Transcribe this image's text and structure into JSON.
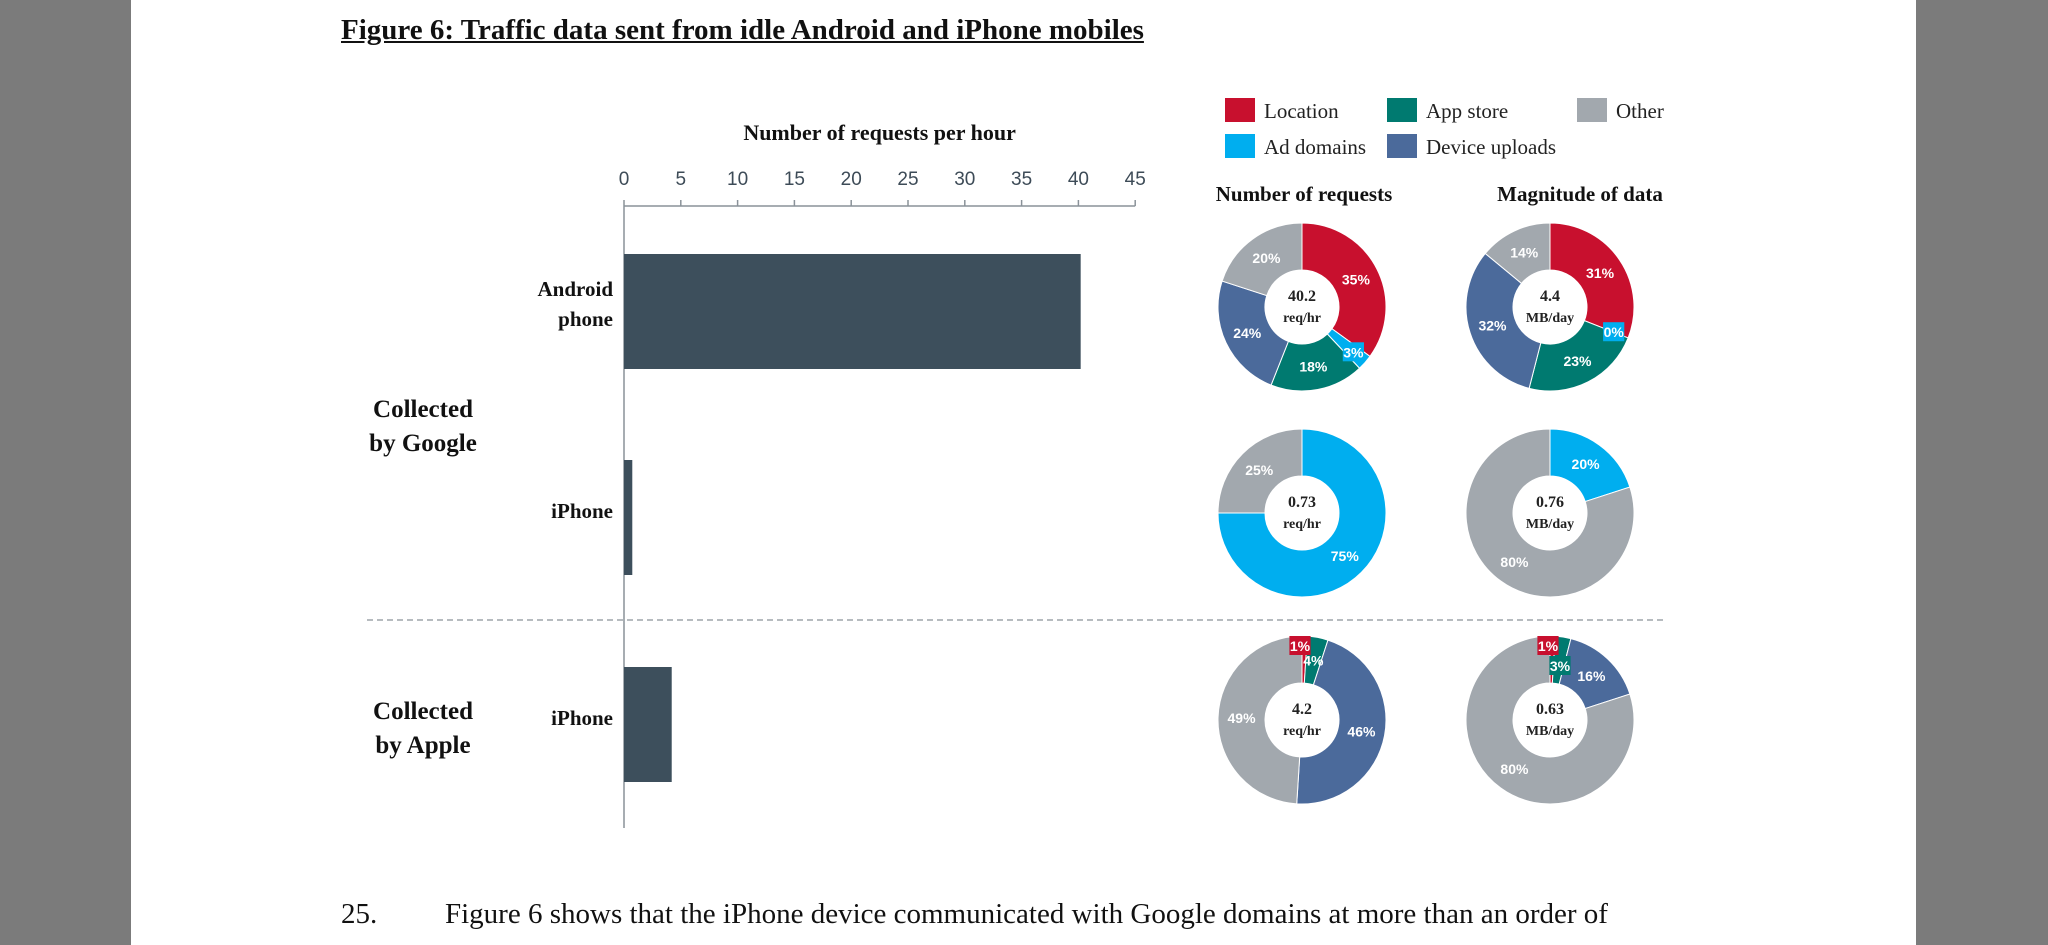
{
  "figure_title": "Figure 6: Traffic data sent from idle Android and iPhone mobiles",
  "paragraph": {
    "number": "25.",
    "text": "Figure 6 shows that the iPhone device communicated with Google domains at more than an order of"
  },
  "colors": {
    "location": "#c8102e",
    "ad_domains": "#00aeef",
    "app_store": "#007a70",
    "device_uploads": "#4b6a9b",
    "other": "#a2a8ae",
    "bar": "#3d4f5c"
  },
  "chart_data": [
    {
      "type": "bar",
      "orientation": "horizontal",
      "title": "Number of requests per hour",
      "xlim": [
        0,
        45
      ],
      "xticks": [
        0,
        5,
        10,
        15,
        20,
        25,
        30,
        35,
        40,
        45
      ],
      "groups": [
        {
          "label": "Collected by Google",
          "label_lines": [
            "Collected",
            "by Google"
          ]
        },
        {
          "label": "Collected by Apple",
          "label_lines": [
            "Collected",
            "by Apple"
          ]
        }
      ],
      "categories": [
        "Android phone",
        "iPhone",
        "iPhone"
      ],
      "category_lines": [
        [
          "Android",
          "phone"
        ],
        [
          "iPhone"
        ],
        [
          "iPhone"
        ]
      ],
      "category_groups": [
        "Collected by Google",
        "Collected by Google",
        "Collected by Apple"
      ],
      "values": [
        40.2,
        0.73,
        4.2
      ]
    },
    {
      "type": "pie",
      "style": "donut",
      "legend": [
        {
          "key": "location",
          "label": "Location"
        },
        {
          "key": "app_store",
          "label": "App store"
        },
        {
          "key": "other",
          "label": "Other"
        },
        {
          "key": "ad_domains",
          "label": "Ad domains"
        },
        {
          "key": "device_uploads",
          "label": "Device uploads"
        }
      ],
      "columns": [
        "Number of requests",
        "Magnitude of data"
      ],
      "rows": [
        {
          "row": "Android phone (Collected by Google)",
          "requests": {
            "center_value": "40.2",
            "center_unit": "req/hr",
            "slices": [
              {
                "key": "location",
                "value": 35,
                "label": "35%"
              },
              {
                "key": "ad_domains",
                "value": 3,
                "label": "3%"
              },
              {
                "key": "app_store",
                "value": 18,
                "label": "18%"
              },
              {
                "key": "device_uploads",
                "value": 24,
                "label": "24%"
              },
              {
                "key": "other",
                "value": 20,
                "label": "20%"
              }
            ]
          },
          "data": {
            "center_value": "4.4",
            "center_unit": "MB/day",
            "slices": [
              {
                "key": "location",
                "value": 31,
                "label": "31%"
              },
              {
                "key": "ad_domains",
                "value": 0,
                "label": "0%"
              },
              {
                "key": "app_store",
                "value": 23,
                "label": "23%"
              },
              {
                "key": "device_uploads",
                "value": 32,
                "label": "32%"
              },
              {
                "key": "other",
                "value": 14,
                "label": "14%"
              }
            ]
          }
        },
        {
          "row": "iPhone (Collected by Google)",
          "requests": {
            "center_value": "0.73",
            "center_unit": "req/hr",
            "slices": [
              {
                "key": "ad_domains",
                "value": 75,
                "label": "75%"
              },
              {
                "key": "other",
                "value": 25,
                "label": "25%"
              }
            ]
          },
          "data": {
            "center_value": "0.76",
            "center_unit": "MB/day",
            "slices": [
              {
                "key": "ad_domains",
                "value": 20,
                "label": "20%"
              },
              {
                "key": "other",
                "value": 80,
                "label": "80%"
              }
            ]
          }
        },
        {
          "row": "iPhone (Collected by Apple)",
          "requests": {
            "center_value": "4.2",
            "center_unit": "req/hr",
            "slices": [
              {
                "key": "location",
                "value": 1,
                "label": "1%"
              },
              {
                "key": "app_store",
                "value": 4,
                "label": "4%"
              },
              {
                "key": "device_uploads",
                "value": 46,
                "label": "46%"
              },
              {
                "key": "other",
                "value": 49,
                "label": "49%"
              }
            ]
          },
          "data": {
            "center_value": "0.63",
            "center_unit": "MB/day",
            "slices": [
              {
                "key": "location",
                "value": 1,
                "label": "1%"
              },
              {
                "key": "app_store",
                "value": 3,
                "label": "3%"
              },
              {
                "key": "device_uploads",
                "value": 16,
                "label": "16%"
              },
              {
                "key": "other",
                "value": 80,
                "label": "80%"
              }
            ]
          }
        }
      ]
    }
  ]
}
